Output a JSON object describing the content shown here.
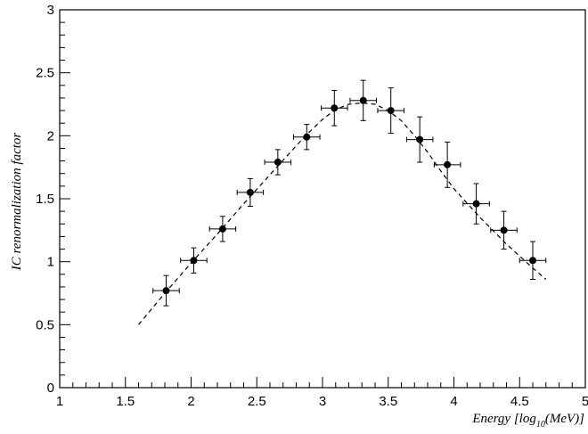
{
  "chart_data": {
    "type": "scatter",
    "xlabel": "Energy [log10(MeV)]",
    "xlabel_parts": {
      "main": "Energy [log",
      "sub": "10",
      "tail": "(MeV)]"
    },
    "ylabel": "IC renormalization factor",
    "xlim": [
      1,
      5
    ],
    "ylim": [
      0,
      3
    ],
    "x_ticks": [
      "1",
      "1.5",
      "2",
      "2.5",
      "3",
      "3.5",
      "4",
      "4.5",
      "5"
    ],
    "y_ticks": [
      "0",
      "0.5",
      "1",
      "1.5",
      "2",
      "2.5",
      "3"
    ],
    "grid": false,
    "series": [
      {
        "style": "markers with error bars",
        "color": "#000000",
        "x": [
          1.81,
          2.02,
          2.24,
          2.45,
          2.66,
          2.88,
          3.09,
          3.31,
          3.52,
          3.74,
          3.95,
          4.17,
          4.38,
          4.6
        ],
        "y": [
          0.77,
          1.01,
          1.26,
          1.55,
          1.79,
          1.99,
          2.22,
          2.28,
          2.2,
          1.97,
          1.77,
          1.46,
          1.25,
          1.01
        ],
        "x_err": [
          0.1,
          0.1,
          0.1,
          0.1,
          0.1,
          0.1,
          0.1,
          0.1,
          0.1,
          0.1,
          0.1,
          0.1,
          0.1,
          0.1
        ],
        "y_err": [
          0.12,
          0.1,
          0.1,
          0.11,
          0.1,
          0.1,
          0.14,
          0.16,
          0.18,
          0.18,
          0.18,
          0.16,
          0.15,
          0.15
        ]
      },
      {
        "style": "dashed line",
        "color": "#000000",
        "x": [
          1.6,
          1.8,
          2.0,
          2.2,
          2.4,
          2.6,
          2.8,
          2.9,
          3.0,
          3.1,
          3.2,
          3.3,
          3.4,
          3.5,
          3.6,
          3.7,
          3.8,
          3.9,
          4.0,
          4.2,
          4.4,
          4.6,
          4.7
        ],
        "y": [
          0.5,
          0.75,
          0.99,
          1.22,
          1.46,
          1.69,
          1.92,
          2.03,
          2.13,
          2.21,
          2.25,
          2.26,
          2.25,
          2.2,
          2.12,
          2.0,
          1.87,
          1.72,
          1.58,
          1.35,
          1.14,
          0.95,
          0.86
        ]
      }
    ]
  }
}
